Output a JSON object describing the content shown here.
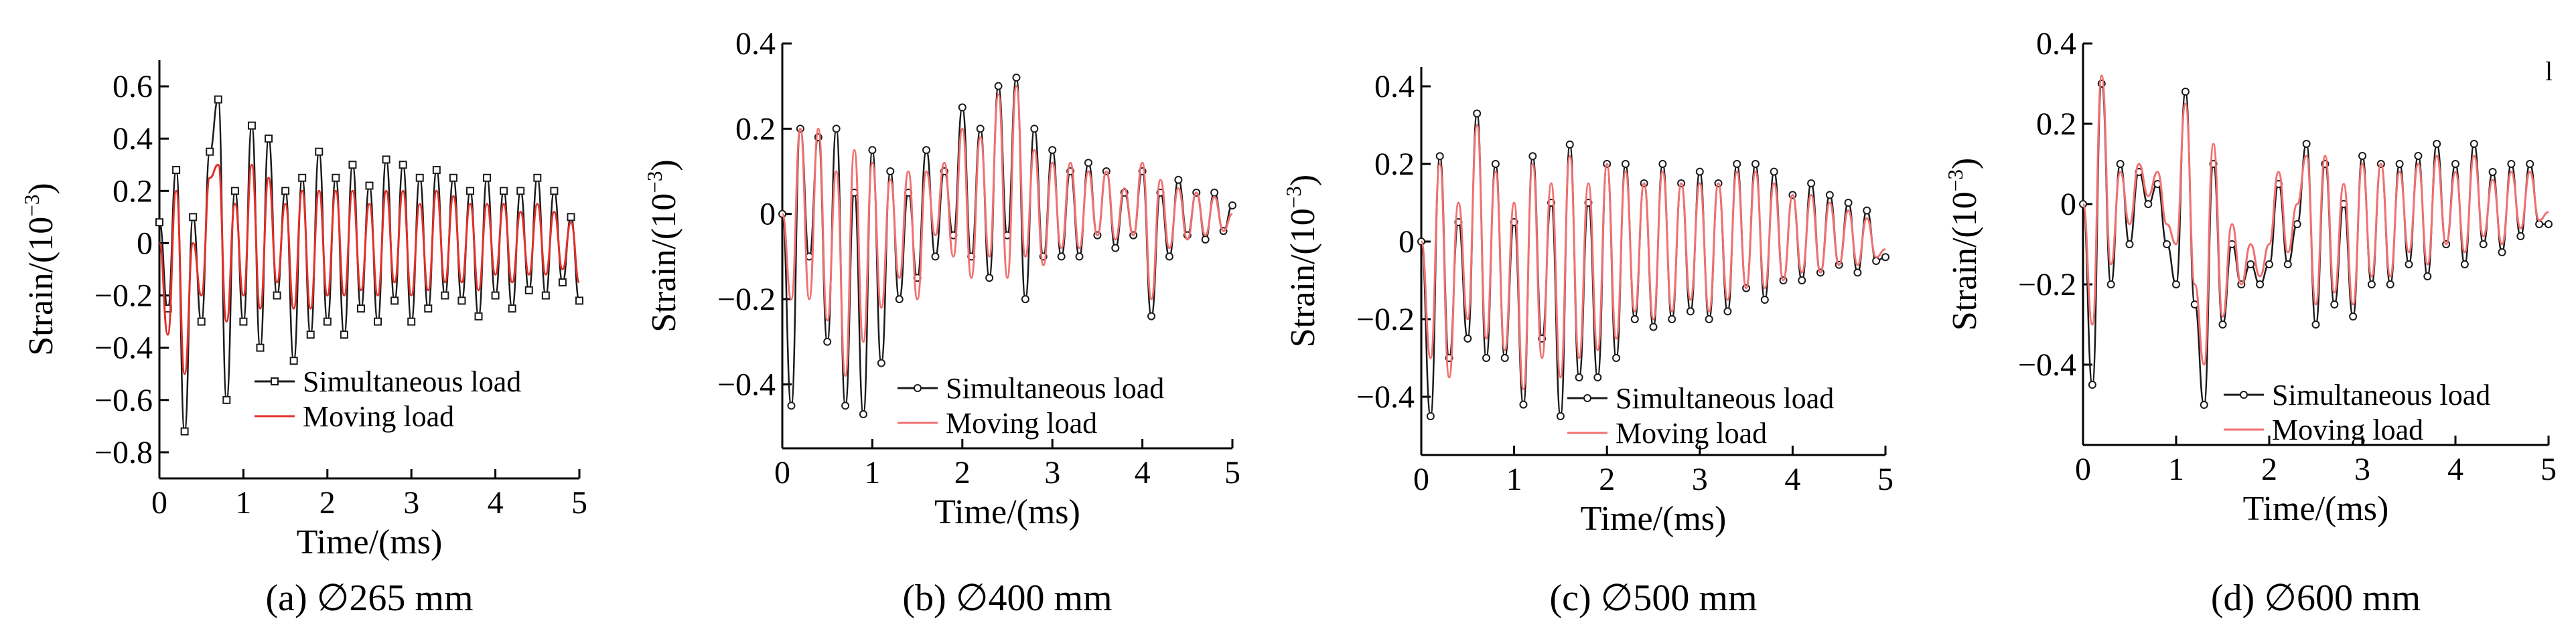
{
  "chart_data": [
    {
      "type": "line",
      "caption": "(a) ∅265 mm",
      "xlabel": "Time/(ms)",
      "ylabel": "Strain/(10",
      "ylabel_exp": "−3",
      "ylabel_close": ")",
      "xlim": [
        0,
        5
      ],
      "ylim": [
        -0.9,
        0.7
      ],
      "xticks": [
        0,
        1,
        2,
        3,
        4,
        5
      ],
      "yticks": [
        -0.8,
        -0.6,
        -0.4,
        -0.2,
        0,
        0.2,
        0.4,
        0.6
      ],
      "ytick_labels": [
        "−0.8",
        "−0.6",
        "−0.4",
        "−0.2",
        "0",
        "0.2",
        "0.4",
        "0.6"
      ],
      "legend": "bottom-right",
      "series": [
        {
          "name": "Simultaneous load",
          "color": "#1a1a1a",
          "marker": "square",
          "t": [
            0,
            0.1,
            0.2,
            0.3,
            0.4,
            0.5,
            0.6,
            0.7,
            0.8,
            0.9,
            1.0,
            1.1,
            1.2,
            1.3,
            1.4,
            1.5,
            1.6,
            1.7,
            1.8,
            1.9,
            2.0,
            2.1,
            2.2,
            2.3,
            2.4,
            2.5,
            2.6,
            2.7,
            2.8,
            2.9,
            3.0,
            3.1,
            3.2,
            3.3,
            3.4,
            3.5,
            3.6,
            3.7,
            3.8,
            3.9,
            4.0,
            4.1,
            4.2,
            4.3,
            4.4,
            4.5,
            4.6,
            4.7,
            4.8,
            4.9,
            5.0
          ],
          "values": [
            0.08,
            -0.25,
            0.28,
            -0.72,
            0.1,
            -0.3,
            0.35,
            0.55,
            -0.6,
            0.2,
            -0.3,
            0.45,
            -0.4,
            0.4,
            -0.2,
            0.2,
            -0.45,
            0.25,
            -0.35,
            0.35,
            -0.3,
            0.25,
            -0.35,
            0.3,
            -0.25,
            0.22,
            -0.3,
            0.32,
            -0.22,
            0.3,
            -0.3,
            0.25,
            -0.25,
            0.28,
            -0.2,
            0.25,
            -0.22,
            0.2,
            -0.28,
            0.25,
            -0.2,
            0.2,
            -0.25,
            0.2,
            -0.18,
            0.25,
            -0.2,
            0.2,
            -0.15,
            0.1,
            -0.22
          ]
        },
        {
          "name": "Moving load",
          "color": "#e0302a",
          "marker": "none",
          "t": [
            0,
            0.1,
            0.2,
            0.3,
            0.4,
            0.5,
            0.6,
            0.7,
            0.8,
            0.9,
            1.0,
            1.1,
            1.2,
            1.3,
            1.4,
            1.5,
            1.6,
            1.7,
            1.8,
            1.9,
            2.0,
            2.1,
            2.2,
            2.3,
            2.4,
            2.5,
            2.6,
            2.7,
            2.8,
            2.9,
            3.0,
            3.1,
            3.2,
            3.3,
            3.4,
            3.5,
            3.6,
            3.7,
            3.8,
            3.9,
            4.0,
            4.1,
            4.2,
            4.3,
            4.4,
            4.5,
            4.6,
            4.7,
            4.8,
            4.9,
            5.0
          ],
          "values": [
            0.0,
            -0.35,
            0.2,
            -0.5,
            0.0,
            -0.2,
            0.25,
            0.3,
            -0.3,
            0.15,
            -0.2,
            0.3,
            -0.25,
            0.25,
            -0.15,
            0.15,
            -0.25,
            0.2,
            -0.25,
            0.2,
            -0.2,
            0.2,
            -0.2,
            0.2,
            -0.18,
            0.15,
            -0.2,
            0.2,
            -0.15,
            0.2,
            -0.2,
            0.15,
            -0.18,
            0.2,
            -0.15,
            0.18,
            -0.15,
            0.15,
            -0.18,
            0.15,
            -0.12,
            0.15,
            -0.15,
            0.12,
            -0.12,
            0.15,
            -0.12,
            0.12,
            -0.1,
            0.08,
            -0.15
          ]
        }
      ]
    },
    {
      "type": "line",
      "caption": "(b) ∅400 mm",
      "xlabel": "Time/(ms)",
      "ylabel": "Strain/(10",
      "ylabel_exp": "−3",
      "ylabel_close": ")",
      "xlim": [
        0,
        5
      ],
      "ylim": [
        -0.55,
        0.4
      ],
      "xticks": [
        0,
        1,
        2,
        3,
        4,
        5
      ],
      "yticks": [
        -0.4,
        -0.2,
        0,
        0.2,
        0.4
      ],
      "ytick_labels": [
        "−0.4",
        "−0.2",
        "0",
        "0.2",
        "0.4"
      ],
      "legend": "bottom-right",
      "series": [
        {
          "name": "Simultaneous load",
          "color": "#1a1a1a",
          "marker": "circle",
          "t": [
            0,
            0.1,
            0.2,
            0.3,
            0.4,
            0.5,
            0.6,
            0.7,
            0.8,
            0.9,
            1.0,
            1.1,
            1.2,
            1.3,
            1.4,
            1.5,
            1.6,
            1.7,
            1.8,
            1.9,
            2.0,
            2.1,
            2.2,
            2.3,
            2.4,
            2.5,
            2.6,
            2.7,
            2.8,
            2.9,
            3.0,
            3.1,
            3.2,
            3.3,
            3.4,
            3.5,
            3.6,
            3.7,
            3.8,
            3.9,
            4.0,
            4.1,
            4.2,
            4.3,
            4.4,
            4.5,
            4.6,
            4.7,
            4.8,
            4.9,
            5.0
          ],
          "values": [
            0.0,
            -0.45,
            0.2,
            -0.1,
            0.18,
            -0.3,
            0.2,
            -0.45,
            0.05,
            -0.47,
            0.15,
            -0.35,
            0.1,
            -0.2,
            0.05,
            -0.15,
            0.15,
            -0.1,
            0.1,
            -0.05,
            0.25,
            -0.1,
            0.2,
            -0.15,
            0.3,
            -0.05,
            0.32,
            -0.2,
            0.2,
            -0.1,
            0.15,
            -0.1,
            0.1,
            -0.1,
            0.12,
            -0.05,
            0.1,
            -0.08,
            0.05,
            -0.05,
            0.1,
            -0.24,
            0.05,
            -0.1,
            0.08,
            -0.05,
            0.05,
            -0.06,
            0.05,
            -0.04,
            0.02
          ]
        },
        {
          "name": "Moving load",
          "color": "#f07070",
          "marker": "none",
          "t": [
            0,
            0.1,
            0.2,
            0.3,
            0.4,
            0.5,
            0.6,
            0.7,
            0.8,
            0.9,
            1.0,
            1.1,
            1.2,
            1.3,
            1.4,
            1.5,
            1.6,
            1.7,
            1.8,
            1.9,
            2.0,
            2.1,
            2.2,
            2.3,
            2.4,
            2.5,
            2.6,
            2.7,
            2.8,
            2.9,
            3.0,
            3.1,
            3.2,
            3.3,
            3.4,
            3.5,
            3.6,
            3.7,
            3.8,
            3.9,
            4.0,
            4.1,
            4.2,
            4.3,
            4.4,
            4.5,
            4.6,
            4.7,
            4.8,
            4.9,
            5.0
          ],
          "values": [
            0.0,
            -0.2,
            0.2,
            -0.2,
            0.2,
            -0.25,
            0.1,
            -0.38,
            0.15,
            -0.3,
            0.12,
            -0.22,
            0.08,
            -0.15,
            0.1,
            -0.2,
            0.1,
            -0.05,
            0.12,
            -0.1,
            0.2,
            -0.15,
            0.18,
            -0.1,
            0.28,
            -0.15,
            0.3,
            -0.1,
            0.15,
            -0.12,
            0.12,
            -0.08,
            0.12,
            -0.08,
            0.1,
            -0.05,
            0.1,
            -0.06,
            0.06,
            -0.05,
            0.12,
            -0.2,
            0.08,
            -0.08,
            0.06,
            -0.06,
            0.05,
            -0.05,
            0.04,
            -0.04,
            0.0
          ]
        }
      ]
    },
    {
      "type": "line",
      "caption": "(c) ∅500 mm",
      "xlabel": "Time/(ms)",
      "ylabel": "Strain/(10",
      "ylabel_exp": "−3",
      "ylabel_close": ")",
      "xlim": [
        0,
        5
      ],
      "ylim": [
        -0.55,
        0.45
      ],
      "xticks": [
        0,
        1,
        2,
        3,
        4,
        5
      ],
      "yticks": [
        -0.4,
        -0.2,
        0,
        0.2,
        0.4
      ],
      "ytick_labels": [
        "−0.4",
        "−0.2",
        "0",
        "0.2",
        "0.4"
      ],
      "legend": "bottom-right",
      "series": [
        {
          "name": "Simultaneous load",
          "color": "#1a1a1a",
          "marker": "circle",
          "t": [
            0,
            0.1,
            0.2,
            0.3,
            0.4,
            0.5,
            0.6,
            0.7,
            0.8,
            0.9,
            1.0,
            1.1,
            1.2,
            1.3,
            1.4,
            1.5,
            1.6,
            1.7,
            1.8,
            1.9,
            2.0,
            2.1,
            2.2,
            2.3,
            2.4,
            2.5,
            2.6,
            2.7,
            2.8,
            2.9,
            3.0,
            3.1,
            3.2,
            3.3,
            3.4,
            3.5,
            3.6,
            3.7,
            3.8,
            3.9,
            4.0,
            4.1,
            4.2,
            4.3,
            4.4,
            4.5,
            4.6,
            4.7,
            4.8,
            4.9,
            5.0
          ],
          "values": [
            0.0,
            -0.45,
            0.22,
            -0.3,
            0.05,
            -0.25,
            0.33,
            -0.3,
            0.2,
            -0.3,
            0.05,
            -0.42,
            0.22,
            -0.25,
            0.1,
            -0.45,
            0.25,
            -0.35,
            0.1,
            -0.35,
            0.2,
            -0.3,
            0.2,
            -0.2,
            0.15,
            -0.22,
            0.2,
            -0.2,
            0.15,
            -0.18,
            0.18,
            -0.2,
            0.15,
            -0.18,
            0.2,
            -0.12,
            0.2,
            -0.15,
            0.18,
            -0.1,
            0.12,
            -0.1,
            0.15,
            -0.08,
            0.12,
            -0.06,
            0.1,
            -0.08,
            0.08,
            -0.05,
            -0.04
          ]
        },
        {
          "name": "Moving load",
          "color": "#f07070",
          "marker": "none",
          "t": [
            0,
            0.1,
            0.2,
            0.3,
            0.4,
            0.5,
            0.6,
            0.7,
            0.8,
            0.9,
            1.0,
            1.1,
            1.2,
            1.3,
            1.4,
            1.5,
            1.6,
            1.7,
            1.8,
            1.9,
            2.0,
            2.1,
            2.2,
            2.3,
            2.4,
            2.5,
            2.6,
            2.7,
            2.8,
            2.9,
            3.0,
            3.1,
            3.2,
            3.3,
            3.4,
            3.5,
            3.6,
            3.7,
            3.8,
            3.9,
            4.0,
            4.1,
            4.2,
            4.3,
            4.4,
            4.5,
            4.6,
            4.7,
            4.8,
            4.9,
            5.0
          ],
          "values": [
            0.0,
            -0.3,
            0.2,
            -0.35,
            0.1,
            -0.2,
            0.3,
            -0.25,
            0.18,
            -0.28,
            0.1,
            -0.38,
            0.2,
            -0.3,
            0.15,
            -0.35,
            0.22,
            -0.3,
            0.15,
            -0.28,
            0.2,
            -0.25,
            0.18,
            -0.18,
            0.15,
            -0.2,
            0.18,
            -0.18,
            0.15,
            -0.15,
            0.15,
            -0.18,
            0.15,
            -0.15,
            0.18,
            -0.12,
            0.18,
            -0.12,
            0.15,
            -0.1,
            0.12,
            -0.08,
            0.12,
            -0.08,
            0.1,
            -0.06,
            0.08,
            -0.06,
            0.06,
            -0.04,
            -0.02
          ]
        }
      ]
    },
    {
      "type": "line",
      "caption": "(d) ∅600 mm",
      "xlabel": "Time/(ms)",
      "ylabel": "Strain/(10",
      "ylabel_exp": "−3",
      "ylabel_close": ")",
      "xlim": [
        0,
        5
      ],
      "ylim": [
        -0.6,
        0.4
      ],
      "xticks": [
        0,
        1,
        2,
        3,
        4,
        5
      ],
      "yticks": [
        -0.4,
        -0.2,
        0,
        0.2,
        0.4
      ],
      "ytick_labels": [
        "−0.4",
        "−0.2",
        "0",
        "0.2",
        "0.4"
      ],
      "legend": "bottom-right",
      "series": [
        {
          "name": "Simultaneous load",
          "color": "#1a1a1a",
          "marker": "circle",
          "t": [
            0,
            0.1,
            0.2,
            0.3,
            0.4,
            0.5,
            0.6,
            0.7,
            0.8,
            0.9,
            1.0,
            1.1,
            1.2,
            1.3,
            1.4,
            1.5,
            1.6,
            1.7,
            1.8,
            1.9,
            2.0,
            2.1,
            2.2,
            2.3,
            2.4,
            2.5,
            2.6,
            2.7,
            2.8,
            2.9,
            3.0,
            3.1,
            3.2,
            3.3,
            3.4,
            3.5,
            3.6,
            3.7,
            3.8,
            3.9,
            4.0,
            4.1,
            4.2,
            4.3,
            4.4,
            4.5,
            4.6,
            4.7,
            4.8,
            4.9,
            5.0
          ],
          "values": [
            0.0,
            -0.45,
            0.3,
            -0.2,
            0.1,
            -0.1,
            0.08,
            0.0,
            0.05,
            -0.1,
            -0.2,
            0.28,
            -0.25,
            -0.5,
            0.1,
            -0.3,
            -0.1,
            -0.2,
            -0.15,
            -0.2,
            -0.15,
            0.05,
            -0.15,
            -0.05,
            0.15,
            -0.3,
            0.1,
            -0.25,
            0.0,
            -0.28,
            0.12,
            -0.2,
            0.1,
            -0.2,
            0.1,
            -0.15,
            0.12,
            -0.18,
            0.15,
            -0.1,
            0.1,
            -0.15,
            0.15,
            -0.1,
            0.08,
            -0.12,
            0.1,
            -0.08,
            0.1,
            -0.05,
            -0.05
          ]
        },
        {
          "name": "Moving load",
          "color": "#f07070",
          "marker": "none",
          "t": [
            0,
            0.1,
            0.2,
            0.3,
            0.4,
            0.5,
            0.6,
            0.7,
            0.8,
            0.9,
            1.0,
            1.1,
            1.2,
            1.3,
            1.4,
            1.5,
            1.6,
            1.7,
            1.8,
            1.9,
            2.0,
            2.1,
            2.2,
            2.3,
            2.4,
            2.5,
            2.6,
            2.7,
            2.8,
            2.9,
            3.0,
            3.1,
            3.2,
            3.3,
            3.4,
            3.5,
            3.6,
            3.7,
            3.8,
            3.9,
            4.0,
            4.1,
            4.2,
            4.3,
            4.4,
            4.5,
            4.6,
            4.7,
            4.8,
            4.9,
            5.0
          ],
          "values": [
            0.0,
            -0.3,
            0.32,
            -0.15,
            0.08,
            -0.05,
            0.1,
            0.02,
            0.08,
            -0.05,
            -0.1,
            0.25,
            -0.2,
            -0.4,
            0.15,
            -0.28,
            -0.05,
            -0.2,
            -0.1,
            -0.18,
            -0.1,
            0.08,
            -0.12,
            0.0,
            0.12,
            -0.25,
            0.12,
            -0.22,
            0.05,
            -0.25,
            0.1,
            -0.18,
            0.1,
            -0.18,
            0.08,
            -0.12,
            0.1,
            -0.15,
            0.12,
            -0.1,
            0.08,
            -0.12,
            0.12,
            -0.08,
            0.06,
            -0.1,
            0.08,
            -0.06,
            0.08,
            -0.04,
            -0.02
          ]
        }
      ]
    }
  ],
  "corner_mark": "l"
}
